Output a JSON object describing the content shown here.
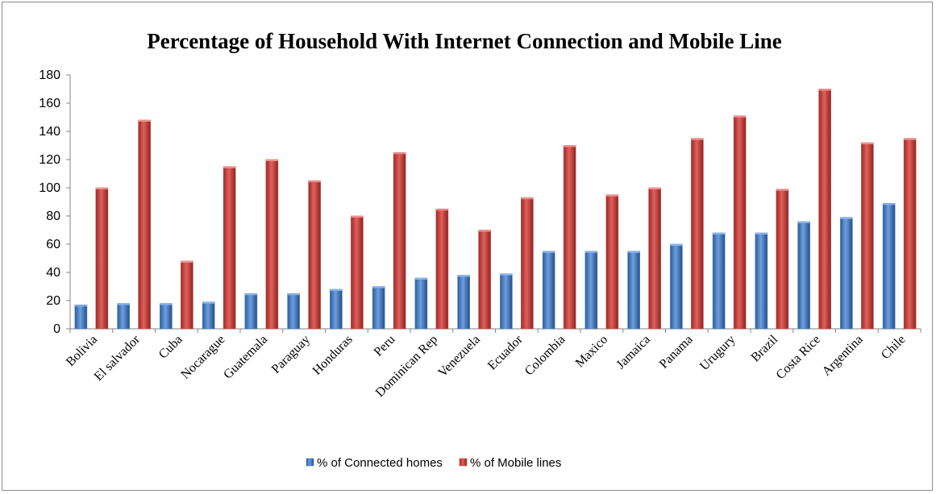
{
  "chart_data": {
    "type": "bar",
    "title": "Percentage of Household With Internet Connection and Mobile Line",
    "xlabel": "",
    "ylabel": "",
    "ylim": [
      0,
      180
    ],
    "yticks": [
      "0",
      "20",
      "40",
      "60",
      "80",
      "100",
      "120",
      "140",
      "160",
      "180"
    ],
    "grid": false,
    "legend_position": "bottom",
    "categories": [
      "Bolivia",
      "El salvador",
      "Cuba",
      "Nocarague",
      "Guatemala",
      "Paraguay",
      "Honduras",
      "Peru",
      "Dominican Rep",
      "Venezuela",
      "Ecuador",
      "Colombia",
      "Maxico",
      "Jamaica",
      "Panama",
      "Urugury",
      "Brazil",
      "Costa Rice",
      "Argentina",
      "Chile"
    ],
    "series": [
      {
        "name": "% of Connected homes",
        "color": "#4a7ebb",
        "values": [
          17,
          18,
          18,
          19,
          25,
          25,
          28,
          30,
          36,
          38,
          39,
          55,
          55,
          55,
          60,
          68,
          68,
          76,
          79,
          89
        ]
      },
      {
        "name": "% of Mobile lines",
        "color": "#c0504d",
        "values": [
          100,
          148,
          48,
          115,
          120,
          105,
          80,
          125,
          85,
          70,
          93,
          130,
          95,
          100,
          135,
          151,
          99,
          170,
          132,
          135
        ]
      }
    ]
  }
}
